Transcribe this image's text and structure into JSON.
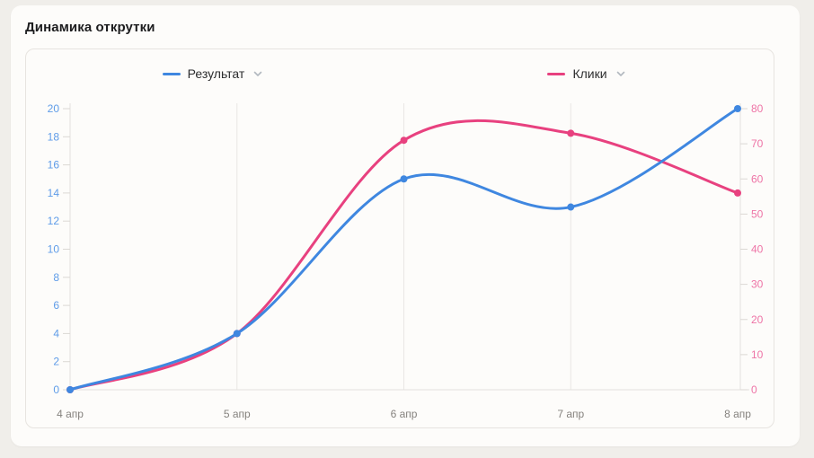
{
  "card": {
    "title": "Динамика открутки"
  },
  "legend": {
    "items": [
      {
        "label": "Результат",
        "color": "#3f87e0"
      },
      {
        "label": "Клики",
        "color": "#e8417f"
      }
    ]
  },
  "chart_data": {
    "type": "line",
    "x": [
      "4 апр",
      "5 апр",
      "6 апр",
      "7 апр",
      "8 апр"
    ],
    "series": [
      {
        "name": "Результат",
        "axis": "left",
        "color": "#3f87e0",
        "values": [
          0,
          4,
          15,
          13,
          20
        ]
      },
      {
        "name": "Клики",
        "axis": "right",
        "color": "#e8417f",
        "values": [
          0,
          16,
          71,
          73,
          56
        ]
      }
    ],
    "left_axis": {
      "min": 0,
      "max": 20,
      "step": 2,
      "label_color": "#5f9ce8"
    },
    "right_axis": {
      "min": 0,
      "max": 80,
      "step": 10,
      "label_color": "#ee74a6"
    },
    "x_label_color": "#85827e",
    "grid": "vertical-only",
    "legend_position": "top",
    "smooth": true
  }
}
